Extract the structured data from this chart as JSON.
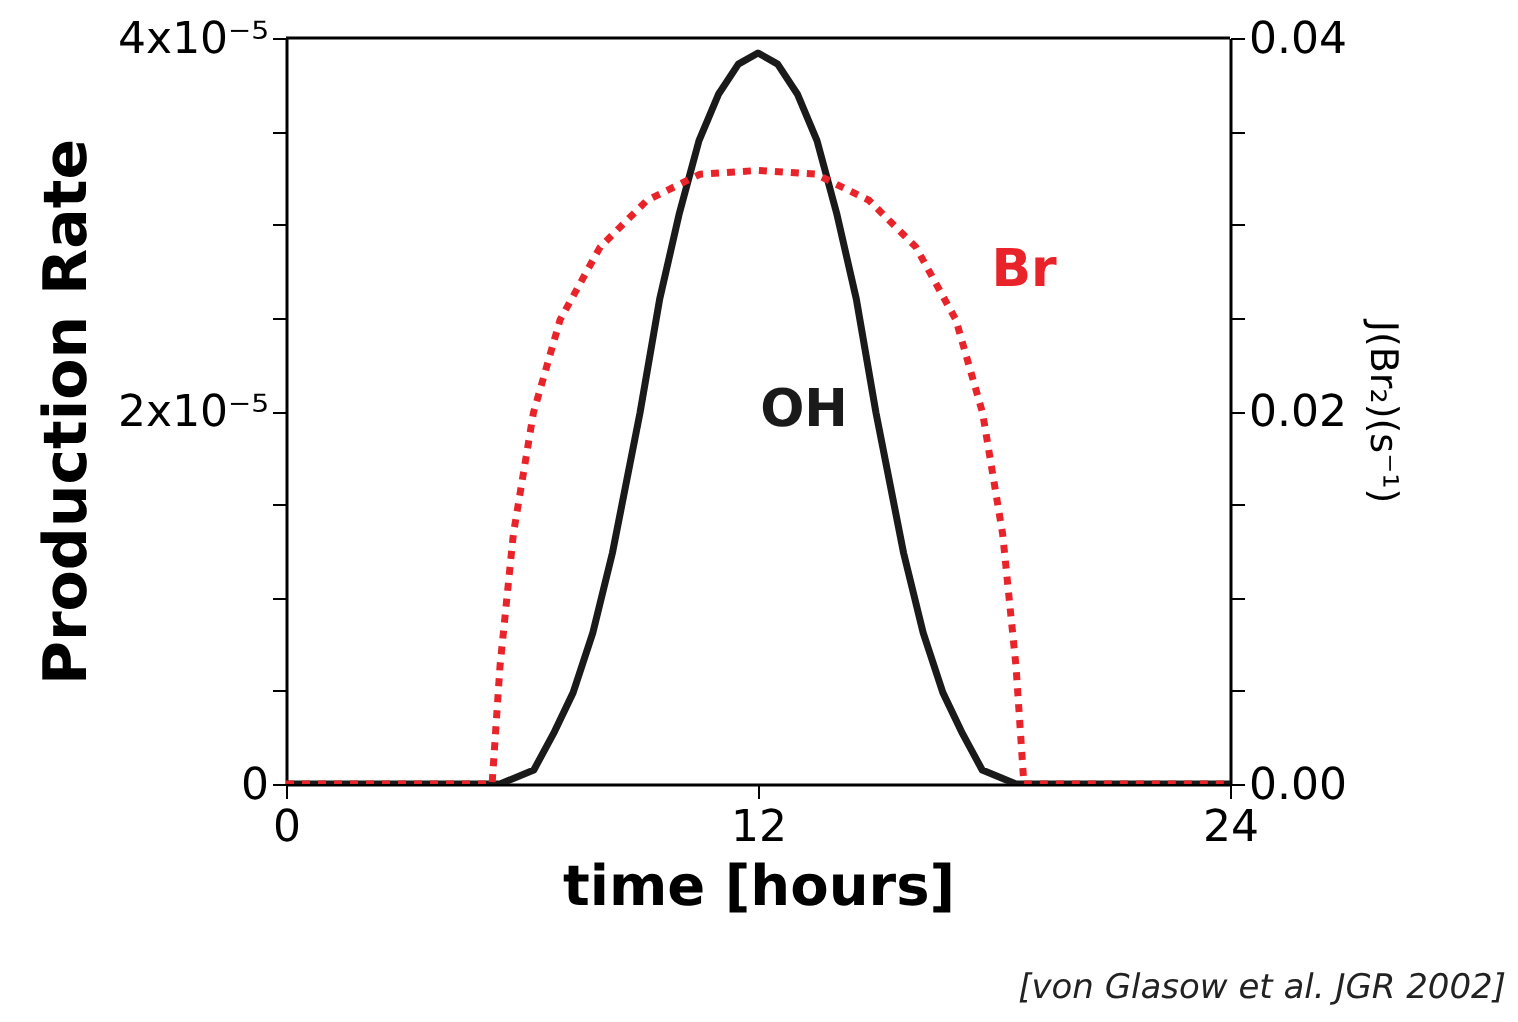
{
  "chart_data": {
    "type": "line",
    "xlabel": "time [hours]",
    "ylabel": "Production Rate",
    "y2label": "J(Br₂)(s⁻¹)",
    "xlim": [
      0,
      24
    ],
    "xticks": [
      0,
      12,
      24
    ],
    "ylim": [
      0,
      4e-05
    ],
    "yticks": [
      {
        "value": 0,
        "label": "0"
      },
      {
        "value": 5e-06,
        "label": null
      },
      {
        "value": 1e-05,
        "label": null
      },
      {
        "value": 1.5e-05,
        "label": null
      },
      {
        "value": 2e-05,
        "label": "2x10⁻⁵"
      },
      {
        "value": 2.5e-05,
        "label": null
      },
      {
        "value": 3e-05,
        "label": null
      },
      {
        "value": 3.5e-05,
        "label": null
      },
      {
        "value": 4e-05,
        "label": "4x10⁻⁵"
      }
    ],
    "y2lim": [
      0,
      0.04
    ],
    "y2ticks": [
      {
        "value": 0,
        "label": "0.00"
      },
      {
        "value": 0.005,
        "label": null
      },
      {
        "value": 0.01,
        "label": null
      },
      {
        "value": 0.015,
        "label": null
      },
      {
        "value": 0.02,
        "label": "0.02"
      },
      {
        "value": 0.025,
        "label": null
      },
      {
        "value": 0.03,
        "label": null
      },
      {
        "value": 0.035,
        "label": null
      },
      {
        "value": 0.04,
        "label": "0.04"
      }
    ],
    "grid": false,
    "marker": "none",
    "series": [
      {
        "name": "OH",
        "color": "#1a1a1a",
        "line_style": "solid",
        "x": [
          0,
          5.44,
          6.3,
          6.8,
          7.3,
          7.8,
          8.3,
          9.0,
          9.5,
          10.0,
          10.5,
          11.0,
          11.5,
          12.0,
          12.5,
          13.0,
          13.5,
          14.0,
          14.5,
          15.0,
          15.7,
          16.2,
          16.7,
          17.2,
          17.7,
          18.56,
          24
        ],
        "values": [
          0,
          0,
          7.5e-07,
          2.7e-06,
          4.9e-06,
          8.1e-06,
          1.24e-05,
          1.99e-05,
          2.6e-05,
          3.06e-05,
          3.45e-05,
          3.7e-05,
          3.86e-05,
          3.92e-05,
          3.86e-05,
          3.7e-05,
          3.45e-05,
          3.06e-05,
          2.6e-05,
          1.99e-05,
          1.24e-05,
          8.1e-06,
          4.9e-06,
          2.7e-06,
          7.5e-07,
          0,
          0
        ]
      },
      {
        "name": "Br",
        "color": "#e8242a",
        "line_style": "dotted",
        "axis": "y2",
        "x": [
          0,
          5.24,
          5.44,
          5.78,
          6.29,
          6.97,
          7.99,
          9.18,
          10.53,
          12.0,
          13.47,
          14.82,
          16.01,
          17.03,
          17.71,
          18.22,
          18.56,
          18.76,
          24
        ],
        "values": [
          0,
          0,
          0.0063,
          0.0134,
          0.0199,
          0.0249,
          0.0288,
          0.0313,
          0.0327,
          0.0329,
          0.0327,
          0.0313,
          0.0288,
          0.0249,
          0.0199,
          0.0134,
          0.0063,
          0,
          0
        ]
      }
    ],
    "annotations": [
      "[von Glasow et al. JGR 2002]"
    ]
  }
}
